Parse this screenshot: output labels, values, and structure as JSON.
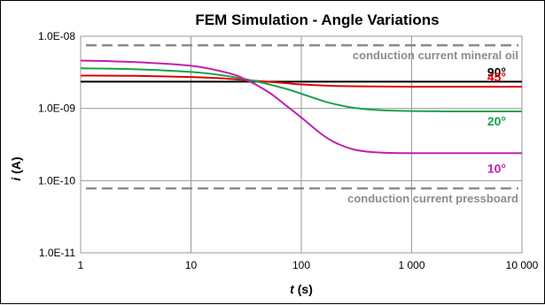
{
  "chart_data": {
    "type": "line",
    "title": "FEM Simulation - Angle Variations",
    "xlabel_var": "t",
    "xlabel_unit": "(s)",
    "ylabel_var": "i",
    "ylabel_unit": "(A)",
    "x_scale": "log",
    "y_scale": "log",
    "xlim": [
      1,
      10000
    ],
    "ylim": [
      1e-11,
      1e-08
    ],
    "x_ticks": [
      1,
      10,
      100,
      1000,
      10000
    ],
    "x_tick_labels": [
      "1",
      "10",
      "100",
      "1 000",
      "10 000"
    ],
    "y_ticks": [
      1e-11,
      1e-10,
      1e-09,
      1e-08
    ],
    "y_tick_labels": [
      "1.0E-11",
      "1.0E-10",
      "1.0E-09",
      "1.0E-08"
    ],
    "grid": true,
    "series": [
      {
        "name": "90°",
        "color": "#000000",
        "x": [
          1,
          3,
          10,
          30,
          100,
          300,
          1000,
          3000,
          10000
        ],
        "y": [
          2.35e-09,
          2.35e-09,
          2.35e-09,
          2.35e-09,
          2.35e-09,
          2.35e-09,
          2.35e-09,
          2.35e-09,
          2.35e-09
        ]
      },
      {
        "name": "45°",
        "color": "#e00000",
        "x": [
          1,
          3,
          10,
          20,
          40,
          70,
          100,
          200,
          400,
          1000,
          3000,
          10000
        ],
        "y": [
          2.85e-09,
          2.83e-09,
          2.72e-09,
          2.6e-09,
          2.4e-09,
          2.25e-09,
          2.15e-09,
          2.05e-09,
          2.02e-09,
          2e-09,
          2e-09,
          2e-09
        ]
      },
      {
        "name": "20°",
        "color": "#17a34a",
        "x": [
          1,
          3,
          10,
          20,
          40,
          70,
          100,
          150,
          200,
          300,
          500,
          1000,
          3000,
          10000
        ],
        "y": [
          3.6e-09,
          3.5e-09,
          3.2e-09,
          2.85e-09,
          2.35e-09,
          1.9e-09,
          1.6e-09,
          1.3e-09,
          1.15e-09,
          1.02e-09,
          9.5e-10,
          9.2e-10,
          9.1e-10,
          9.1e-10
        ]
      },
      {
        "name": "10°",
        "color": "#c020b0",
        "x": [
          1,
          3,
          10,
          20,
          30,
          50,
          70,
          100,
          150,
          200,
          300,
          500,
          1000,
          3000,
          10000
        ],
        "y": [
          4.6e-09,
          4.4e-09,
          3.9e-09,
          3.2e-09,
          2.6e-09,
          1.7e-09,
          1.15e-09,
          7.5e-10,
          4.5e-10,
          3.4e-10,
          2.7e-10,
          2.45e-10,
          2.4e-10,
          2.4e-10,
          2.4e-10
        ]
      }
    ],
    "reference_lines": [
      {
        "label": "conduction current mineral oil",
        "y": 7.5e-09,
        "color": "#8c8c8c",
        "style": "dashed"
      },
      {
        "label": "conduction current pressboard",
        "y": 7.8e-11,
        "color": "#8c8c8c",
        "style": "dashed"
      }
    ]
  }
}
